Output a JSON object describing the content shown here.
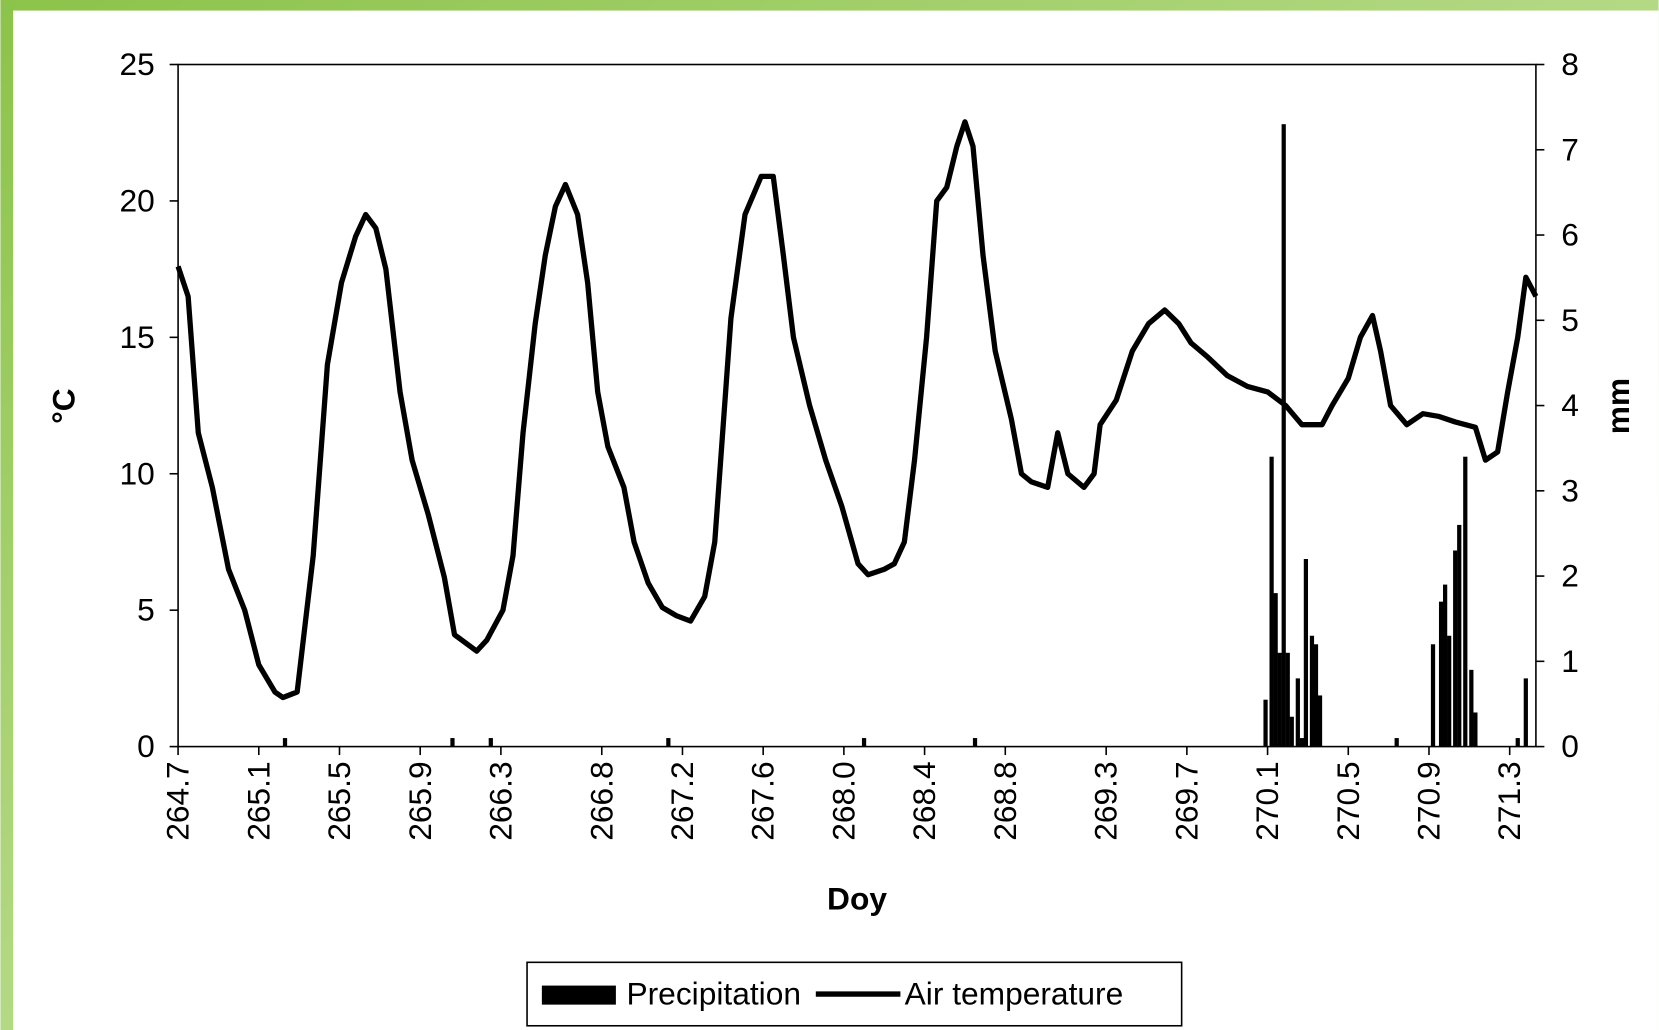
{
  "chart_data": {
    "type": "combo",
    "xlabel": "Doy",
    "ylabel": "°C",
    "y2label": "mm",
    "xlim": [
      264.7,
      271.43
    ],
    "ylim": [
      0,
      25
    ],
    "y2lim": [
      0,
      8
    ],
    "xticks": [
      264.7,
      265.1,
      265.5,
      265.9,
      266.3,
      266.8,
      267.2,
      267.6,
      {
        "value": 268,
        "label": "268.0"
      },
      268.4,
      268.8,
      269.3,
      269.7,
      270.1,
      270.5,
      270.9,
      271.3
    ],
    "yticks": [
      0,
      5,
      10,
      15,
      20,
      25
    ],
    "y2ticks": [
      0,
      1,
      2,
      3,
      4,
      5,
      6,
      7,
      8
    ],
    "legend": "bottom",
    "series": [
      {
        "name": "Precipitation",
        "type": "bar",
        "axis": "y2",
        "color": "#000000",
        "x": [
          265.23,
          266.06,
          266.25,
          267.13,
          268.1,
          268.65,
          270.09,
          270.12,
          270.14,
          270.16,
          270.18,
          270.2,
          270.22,
          270.25,
          270.27,
          270.29,
          270.32,
          270.34,
          270.36,
          270.74,
          270.92,
          270.96,
          270.98,
          271.0,
          271.03,
          271.05,
          271.08,
          271.11,
          271.13,
          271.34,
          271.38
        ],
        "values": [
          0.1,
          0.1,
          0.1,
          0.1,
          0.1,
          0.1,
          0.55,
          3.4,
          1.8,
          1.1,
          7.3,
          1.1,
          0.35,
          0.8,
          0.1,
          2.2,
          1.3,
          1.2,
          0.6,
          0.1,
          1.2,
          1.7,
          1.9,
          1.3,
          2.3,
          2.6,
          3.4,
          0.9,
          0.4,
          0.1,
          0.8
        ]
      },
      {
        "name": "Air temperature",
        "type": "line",
        "color": "#000000",
        "x": [
          264.7,
          264.75,
          264.8,
          264.87,
          264.95,
          265.03,
          265.1,
          265.18,
          265.22,
          265.29,
          265.37,
          265.42,
          265.44,
          265.51,
          265.58,
          265.63,
          265.68,
          265.73,
          265.8,
          265.86,
          265.94,
          266.02,
          266.07,
          266.18,
          266.23,
          266.31,
          266.36,
          266.41,
          266.47,
          266.52,
          266.57,
          266.62,
          266.68,
          266.73,
          266.78,
          266.83,
          266.91,
          266.96,
          267.03,
          267.1,
          267.17,
          267.24,
          267.31,
          267.36,
          267.44,
          267.51,
          267.59,
          267.65,
          267.7,
          267.75,
          267.83,
          267.91,
          267.99,
          268.07,
          268.12,
          268.2,
          268.25,
          268.3,
          268.35,
          268.41,
          268.46,
          268.51,
          268.56,
          268.6,
          268.64,
          268.69,
          268.75,
          268.83,
          268.88,
          268.93,
          269.01,
          269.06,
          269.11,
          269.19,
          269.24,
          269.27,
          269.35,
          269.43,
          269.51,
          269.59,
          269.66,
          269.72,
          269.8,
          269.9,
          270.0,
          270.1,
          270.19,
          270.27,
          270.37,
          270.42,
          270.5,
          270.56,
          270.62,
          270.66,
          270.71,
          270.79,
          270.87,
          270.95,
          271.03,
          271.13,
          271.18,
          271.24,
          271.29,
          271.34,
          271.38,
          271.43
        ],
        "values": [
          17.6,
          16.5,
          11.5,
          9.5,
          6.5,
          5.0,
          3.0,
          2.0,
          1.8,
          2.0,
          7,
          12,
          14,
          17,
          18.7,
          19.5,
          19,
          17.5,
          13,
          10.5,
          8.5,
          6.2,
          4.1,
          3.5,
          3.9,
          5,
          7,
          11.5,
          15.5,
          18,
          19.8,
          20.6,
          19.5,
          17,
          13,
          11,
          9.5,
          7.5,
          6,
          5.1,
          4.8,
          4.6,
          5.5,
          7.5,
          15.7,
          19.5,
          20.9,
          20.9,
          18,
          15,
          12.5,
          10.5,
          8.8,
          6.7,
          6.3,
          6.5,
          6.7,
          7.5,
          10.5,
          15,
          20,
          20.5,
          22,
          22.9,
          22,
          18,
          14.5,
          12,
          10,
          9.7,
          9.5,
          11.5,
          10,
          9.5,
          10,
          11.8,
          12.7,
          14.5,
          15.5,
          16,
          15.5,
          14.8,
          14.3,
          13.6,
          13.2,
          13,
          12.5,
          11.8,
          11.8,
          12.5,
          13.5,
          15,
          15.8,
          14.5,
          12.5,
          11.8,
          12.2,
          12.1,
          11.9,
          11.7,
          10.5,
          10.8,
          13,
          15,
          17.2,
          16.5
        ]
      }
    ]
  }
}
